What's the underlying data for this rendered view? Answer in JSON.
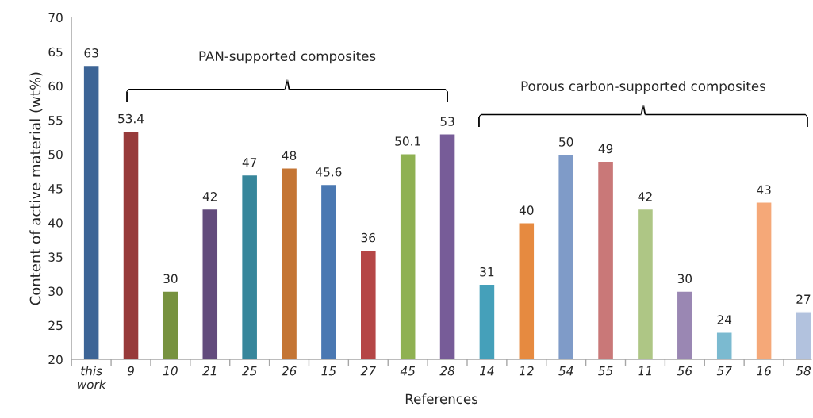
{
  "chart_data": {
    "type": "bar",
    "xlabel": "References",
    "ylabel": "Content of active material (wt%)",
    "categories": [
      "this work",
      "9",
      "10",
      "21",
      "25",
      "26",
      "15",
      "27",
      "45",
      "28",
      "14",
      "12",
      "54",
      "55",
      "11",
      "56",
      "57",
      "16",
      "58"
    ],
    "values": [
      63,
      53.4,
      30,
      42,
      47,
      48,
      45.6,
      36,
      50.1,
      53,
      31,
      40,
      50,
      49,
      42,
      30,
      24,
      43,
      27
    ],
    "colors": [
      "#3c6496",
      "#973a3a",
      "#77923f",
      "#624b7c",
      "#37869b",
      "#c47534",
      "#4a78b2",
      "#b54646",
      "#8fb152",
      "#775c98",
      "#45a0ba",
      "#e68a40",
      "#7f9bc8",
      "#c97878",
      "#aec685",
      "#9a87b3",
      "#7bbad0",
      "#f5a878",
      "#b2c2de"
    ],
    "value_labels": [
      "63",
      "53.4",
      "30",
      "42",
      "47",
      "48",
      "45.6",
      "36",
      "50.1",
      "53",
      "31",
      "40",
      "50",
      "49",
      "42",
      "30",
      "24",
      "43",
      "27"
    ],
    "ylim": [
      20,
      70
    ],
    "yticks": [
      20,
      25,
      30,
      35,
      40,
      45,
      50,
      55,
      60,
      65,
      70
    ],
    "grid": false,
    "annotations": [
      "PAN-supported composites",
      "Porous carbon-supported composites"
    ]
  }
}
